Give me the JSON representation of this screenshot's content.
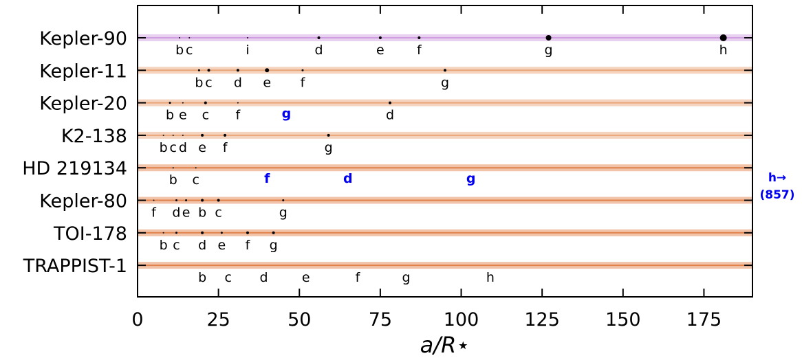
{
  "chart_data": {
    "type": "scatter",
    "xlabel": "a/R⋆",
    "xlim": [
      0,
      190
    ],
    "xticks": [
      0,
      25,
      50,
      75,
      100,
      125,
      150,
      175
    ],
    "grid": false,
    "systems": [
      {
        "name": "Kepler-90",
        "band_color": "#cc99dd",
        "planets": [
          {
            "label": "b",
            "x": 13,
            "size": 1
          },
          {
            "label": "c",
            "x": 16,
            "size": 1
          },
          {
            "label": "i",
            "x": 34,
            "size": 1
          },
          {
            "label": "d",
            "x": 56,
            "size": 2
          },
          {
            "label": "e",
            "x": 75,
            "size": 2
          },
          {
            "label": "f",
            "x": 87,
            "size": 2
          },
          {
            "label": "g",
            "x": 127,
            "size": 4
          },
          {
            "label": "h",
            "x": 181,
            "size": 5
          }
        ]
      },
      {
        "name": "Kepler-11",
        "band_color": "#e8a070",
        "planets": [
          {
            "label": "b",
            "x": 19,
            "size": 1.5
          },
          {
            "label": "c",
            "x": 22,
            "size": 2
          },
          {
            "label": "d",
            "x": 31,
            "size": 2
          },
          {
            "label": "e",
            "x": 40,
            "size": 3
          },
          {
            "label": "f",
            "x": 51,
            "size": 1.5
          },
          {
            "label": "g",
            "x": 95,
            "size": 2
          }
        ]
      },
      {
        "name": "Kepler-20",
        "band_color": "#e8a070",
        "planets": [
          {
            "label": "b",
            "x": 10,
            "size": 1.5
          },
          {
            "label": "e",
            "x": 14,
            "size": 1
          },
          {
            "label": "c",
            "x": 21,
            "size": 2
          },
          {
            "label": "f",
            "x": 31,
            "size": 1
          },
          {
            "label": "g",
            "x": 46,
            "size": 0,
            "highlight": true
          },
          {
            "label": "d",
            "x": 78,
            "size": 2
          }
        ]
      },
      {
        "name": "K2-138",
        "band_color": "#e8a070",
        "planets": [
          {
            "label": "b",
            "x": 8,
            "size": 1
          },
          {
            "label": "c",
            "x": 11,
            "size": 1
          },
          {
            "label": "d",
            "x": 14,
            "size": 1
          },
          {
            "label": "e",
            "x": 20,
            "size": 2
          },
          {
            "label": "f",
            "x": 27,
            "size": 2
          },
          {
            "label": "g",
            "x": 59,
            "size": 2
          }
        ]
      },
      {
        "name": "HD 219134",
        "band_color": "#e07a40",
        "planets": [
          {
            "label": "b",
            "x": 11,
            "size": 1
          },
          {
            "label": "c",
            "x": 18,
            "size": 1
          },
          {
            "label": "f",
            "x": 40,
            "size": 0,
            "highlight": true
          },
          {
            "label": "d",
            "x": 65,
            "size": 0,
            "highlight": true
          },
          {
            "label": "g",
            "x": 103,
            "size": 0,
            "highlight": true
          }
        ]
      },
      {
        "name": "Kepler-80",
        "band_color": "#e07a40",
        "planets": [
          {
            "label": "f",
            "x": 5,
            "size": 1
          },
          {
            "label": "d",
            "x": 12,
            "size": 1.5
          },
          {
            "label": "e",
            "x": 15,
            "size": 1.5
          },
          {
            "label": "b",
            "x": 20,
            "size": 2
          },
          {
            "label": "c",
            "x": 25,
            "size": 2
          },
          {
            "label": "g",
            "x": 45,
            "size": 1.5
          }
        ]
      },
      {
        "name": "TOI-178",
        "band_color": "#e07a40",
        "planets": [
          {
            "label": "b",
            "x": 8,
            "size": 1
          },
          {
            "label": "c",
            "x": 12,
            "size": 1.5
          },
          {
            "label": "d",
            "x": 20,
            "size": 2
          },
          {
            "label": "e",
            "x": 26,
            "size": 1.5
          },
          {
            "label": "f",
            "x": 34,
            "size": 2
          },
          {
            "label": "g",
            "x": 42,
            "size": 2
          }
        ]
      },
      {
        "name": "TRAPPIST-1",
        "band_color": "#e07a40",
        "planets": [
          {
            "label": "b",
            "x": 20,
            "size": 0
          },
          {
            "label": "c",
            "x": 28,
            "size": 0
          },
          {
            "label": "d",
            "x": 39,
            "size": 0
          },
          {
            "label": "e",
            "x": 52,
            "size": 0
          },
          {
            "label": "f",
            "x": 68,
            "size": 0
          },
          {
            "label": "g",
            "x": 83,
            "size": 0
          },
          {
            "label": "h",
            "x": 109,
            "size": 0
          }
        ]
      }
    ],
    "annotation": {
      "line1": "h→",
      "line2": "(857)",
      "color": "#0000ee"
    }
  }
}
